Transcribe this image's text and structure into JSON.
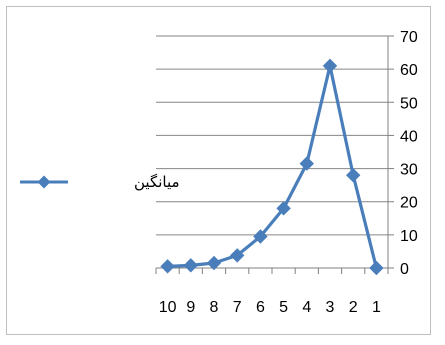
{
  "chart_data": {
    "type": "line",
    "categories": [
      "10",
      "9",
      "8",
      "7",
      "6",
      "5",
      "4",
      "3",
      "2",
      "1"
    ],
    "series": [
      {
        "name": "میانگین",
        "values": [
          0.5,
          0.8,
          1.5,
          3.8,
          9.5,
          18,
          31.5,
          61,
          28,
          0
        ],
        "color": "#4a7ebb"
      }
    ],
    "title": "",
    "xlabel": "",
    "ylabel": "",
    "ylim": [
      0,
      70
    ],
    "yticks": [
      0,
      10,
      20,
      30,
      40,
      50,
      60,
      70
    ],
    "y_axis_position": "right",
    "grid": true,
    "legend_position": "left"
  }
}
